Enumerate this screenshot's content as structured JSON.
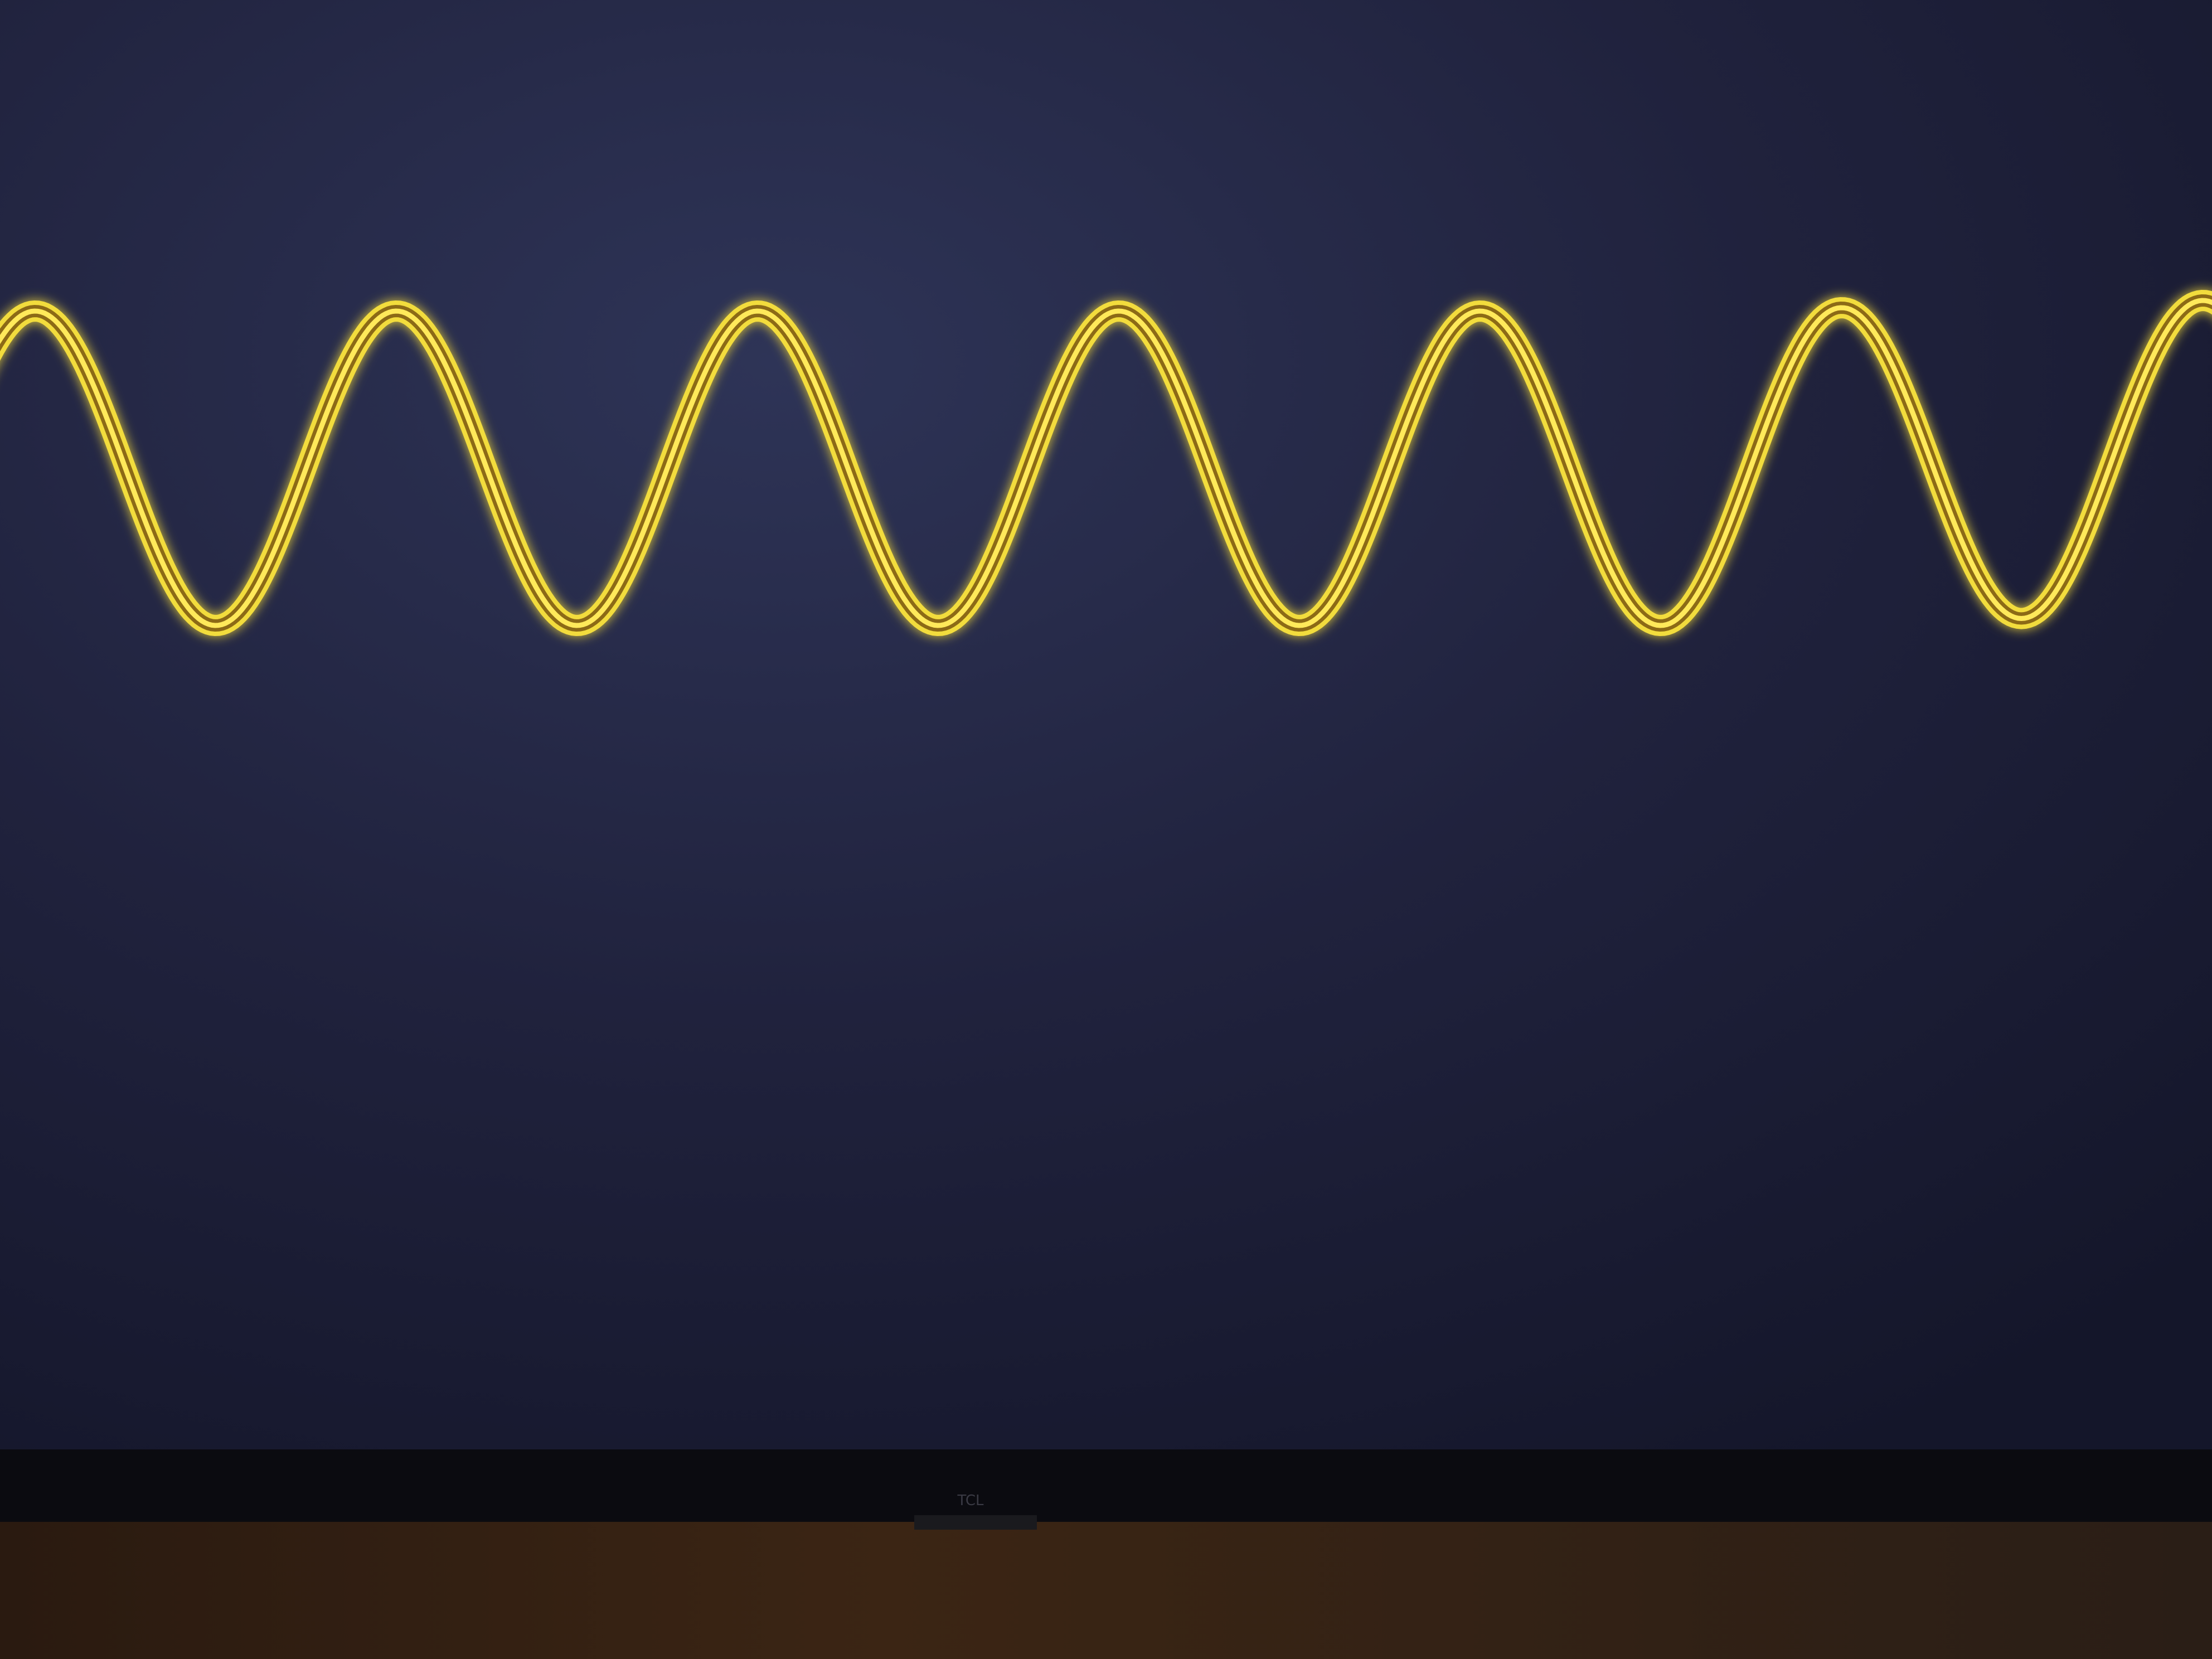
{
  "logo": "TCL"
}
